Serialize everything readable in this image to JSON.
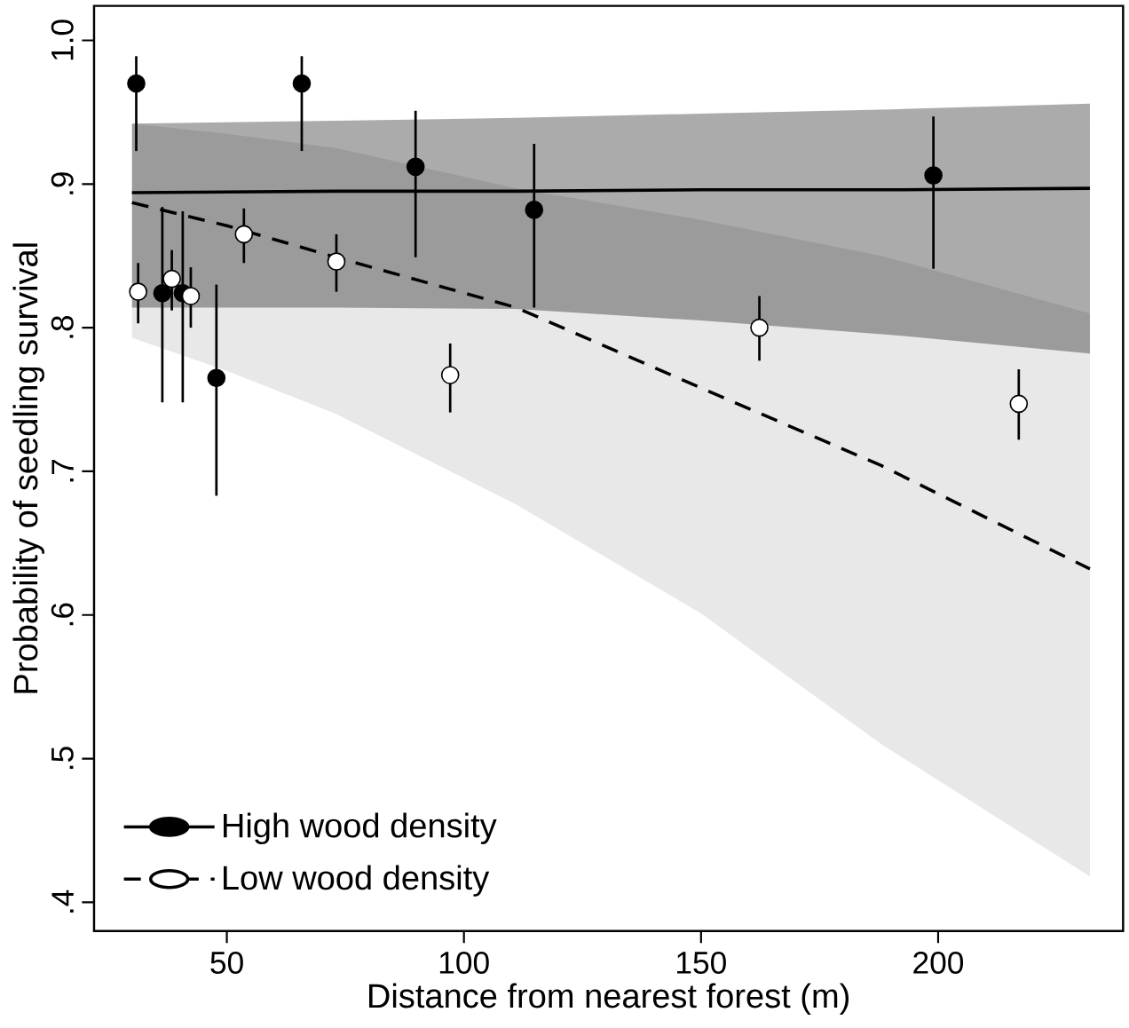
{
  "chart_data": {
    "type": "scatter",
    "xlabel": "Distance from nearest forest (m)",
    "ylabel": "Probability of seedling survival",
    "xlim": [
      22,
      239
    ],
    "ylim": [
      0.38,
      1.024
    ],
    "xticks": [
      50,
      100,
      150,
      200
    ],
    "yticks": [
      {
        "value": 0.4,
        "label": ".4"
      },
      {
        "value": 0.5,
        "label": ".5"
      },
      {
        "value": 0.6,
        "label": ".6"
      },
      {
        "value": 0.7,
        "label": ".7"
      },
      {
        "value": 0.8,
        "label": ".8"
      },
      {
        "value": 0.9,
        "label": ".9"
      },
      {
        "value": 1.0,
        "label": "1.0"
      }
    ],
    "grid": false,
    "legend": "bottom left",
    "series": [
      {
        "type": "line",
        "name": "High wood density",
        "color": "#000000",
        "line_style": "solid",
        "x": [
          30,
          73,
          111,
          150,
          190,
          232
        ],
        "values": [
          0.894,
          0.895,
          0.895,
          0.896,
          0.896,
          0.897
        ],
        "lower": [
          0.814,
          0.814,
          0.813,
          0.805,
          0.795,
          0.782
        ],
        "upper": [
          0.942,
          0.944,
          0.946,
          0.949,
          0.952,
          0.956
        ]
      },
      {
        "type": "line",
        "name": "Low wood density",
        "color": "#000000",
        "line_style": "dashed",
        "x": [
          30,
          50,
          73,
          111,
          150,
          188,
          232
        ],
        "values": [
          0.887,
          0.871,
          0.849,
          0.814,
          0.758,
          0.704,
          0.632
        ],
        "lower": [
          0.793,
          0.77,
          0.74,
          0.677,
          0.601,
          0.51,
          0.418
        ],
        "upper": [
          0.942,
          0.935,
          0.925,
          0.897,
          0.875,
          0.85,
          0.81
        ]
      },
      {
        "color": "#000000",
        "marker": "circle",
        "x": [
          30.9,
          36.4,
          40.7,
          47.8,
          65.8,
          89.8,
          114.8,
          199
        ],
        "values": [
          0.97,
          0.824,
          0.824,
          0.765,
          0.97,
          0.912,
          0.882,
          0.906
        ],
        "errors": [
          [
            0.923,
            0.989
          ],
          [
            0.748,
            0.884
          ],
          [
            0.748,
            0.881
          ],
          [
            0.683,
            0.83
          ],
          [
            0.923,
            0.989
          ],
          [
            0.849,
            0.951
          ],
          [
            0.814,
            0.928
          ],
          [
            0.841,
            0.947
          ]
        ]
      },
      {
        "color": "#ffffff",
        "marker": "circle",
        "x": [
          31.3,
          38.4,
          42.4,
          53.6,
          73.1,
          97.1,
          162.3,
          217
        ],
        "values": [
          0.825,
          0.834,
          0.822,
          0.865,
          0.846,
          0.767,
          0.8,
          0.747
        ],
        "errors": [
          [
            0.803,
            0.845
          ],
          [
            0.812,
            0.854
          ],
          [
            0.8,
            0.842
          ],
          [
            0.845,
            0.883
          ],
          [
            0.825,
            0.865
          ],
          [
            0.741,
            0.789
          ],
          [
            0.777,
            0.822
          ],
          [
            0.722,
            0.771
          ]
        ]
      }
    ]
  }
}
